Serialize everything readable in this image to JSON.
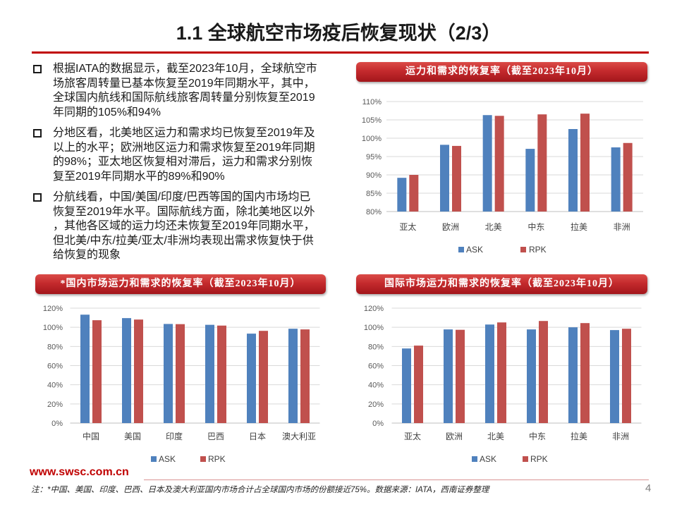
{
  "slide": {
    "title": "1.1 全球航空市场疫后恢复现状（2/3）"
  },
  "bullets": [
    {
      "lines": [
        "根据IATA的数据显示，截至2023年10月，全球航空市",
        "场旅客周转量已基本恢复至2019年同期水平，其中，",
        "全球国内航线和国际航线旅客周转量分别恢复至2019",
        "年同期的105%和94%"
      ]
    },
    {
      "lines": [
        "分地区看，北美地区运力和需求均已恢复至2019年及",
        "以上的水平；欧洲地区运力和需求恢复至2019年同期",
        "的98%；亚太地区恢复相对滞后，运力和需求分别恢",
        "复至2019年同期水平的89%和90%"
      ]
    },
    {
      "lines": [
        "分航线看，中国/美国/印度/巴西等国的国内市场均已",
        "恢复至2019年水平。国际航线方面，除北美地区以外",
        "，其他各区域的运力均还未恢复至2019年同期水平，",
        "但北美/中东/拉美/亚太/非洲均表现出需求恢复快于供",
        "给恢复的现象"
      ]
    }
  ],
  "chart_data": [
    {
      "type": "bar",
      "title": "运力和需求的恢复率（截至2023年10月）",
      "categories": [
        "亚太",
        "欧洲",
        "北美",
        "中东",
        "拉美",
        "非洲"
      ],
      "series": [
        {
          "name": "ASK",
          "color": "#4F81BD",
          "values": [
            89.2,
            98.2,
            106.3,
            97.1,
            102.5,
            97.5
          ]
        },
        {
          "name": "RPK",
          "color": "#C0504D",
          "values": [
            90.0,
            97.9,
            106.1,
            106.5,
            106.7,
            98.7
          ]
        }
      ],
      "xlabel": "",
      "ylabel": "",
      "ylim": [
        80,
        110
      ],
      "yticks": [
        80,
        85,
        90,
        95,
        100,
        105,
        110
      ],
      "ytick_labels": [
        "80%",
        "85%",
        "90%",
        "95%",
        "100%",
        "105%",
        "110%"
      ],
      "grid": true,
      "legend": "bottom"
    },
    {
      "type": "bar",
      "title": "*国内市场运力和需求的恢复率（截至2023年10月）",
      "categories": [
        "中国",
        "美国",
        "印度",
        "巴西",
        "日本",
        "澳大利亚"
      ],
      "series": [
        {
          "name": "ASK",
          "color": "#4F81BD",
          "values": [
            113.2,
            109.6,
            103.5,
            102.6,
            93.4,
            98.5
          ]
        },
        {
          "name": "RPK",
          "color": "#C0504D",
          "values": [
            107.4,
            108.1,
            103.3,
            101.8,
            96.3,
            97.8
          ]
        }
      ],
      "xlabel": "",
      "ylabel": "",
      "ylim": [
        0,
        120
      ],
      "yticks": [
        0,
        20,
        40,
        60,
        80,
        100,
        120
      ],
      "ytick_labels": [
        "0%",
        "20%",
        "40%",
        "60%",
        "80%",
        "100%",
        "120%"
      ],
      "grid": true,
      "legend": "bottom"
    },
    {
      "type": "bar",
      "title": "国际市场运力和需求的恢复率（截至2023年10月）",
      "categories": [
        "亚太",
        "欧洲",
        "北美",
        "中东",
        "拉美",
        "非洲"
      ],
      "series": [
        {
          "name": "ASK",
          "color": "#4F81BD",
          "values": [
            77.9,
            97.8,
            102.9,
            97.8,
            100.0,
            97.1
          ]
        },
        {
          "name": "RPK",
          "color": "#C0504D",
          "values": [
            80.9,
            97.4,
            105.1,
            106.6,
            104.4,
            98.5
          ]
        }
      ],
      "xlabel": "",
      "ylabel": "",
      "ylim": [
        0,
        120
      ],
      "yticks": [
        0,
        20,
        40,
        60,
        80,
        100,
        120
      ],
      "ytick_labels": [
        "0%",
        "20%",
        "40%",
        "60%",
        "80%",
        "100%",
        "120%"
      ],
      "grid": true,
      "legend": "bottom"
    }
  ],
  "footer": {
    "website": "www.swsc.com.cn",
    "note": "注：*中国、美国、印度、巴西、日本及澳大利亚国内市场合计占全球国内市场的份额接近75%。数据来源：IATA，西南证券整理",
    "page_number": "4"
  },
  "colors": {
    "accent": "#C00000",
    "banner": "#C42A2D",
    "gridline": "#D9D9D9"
  }
}
